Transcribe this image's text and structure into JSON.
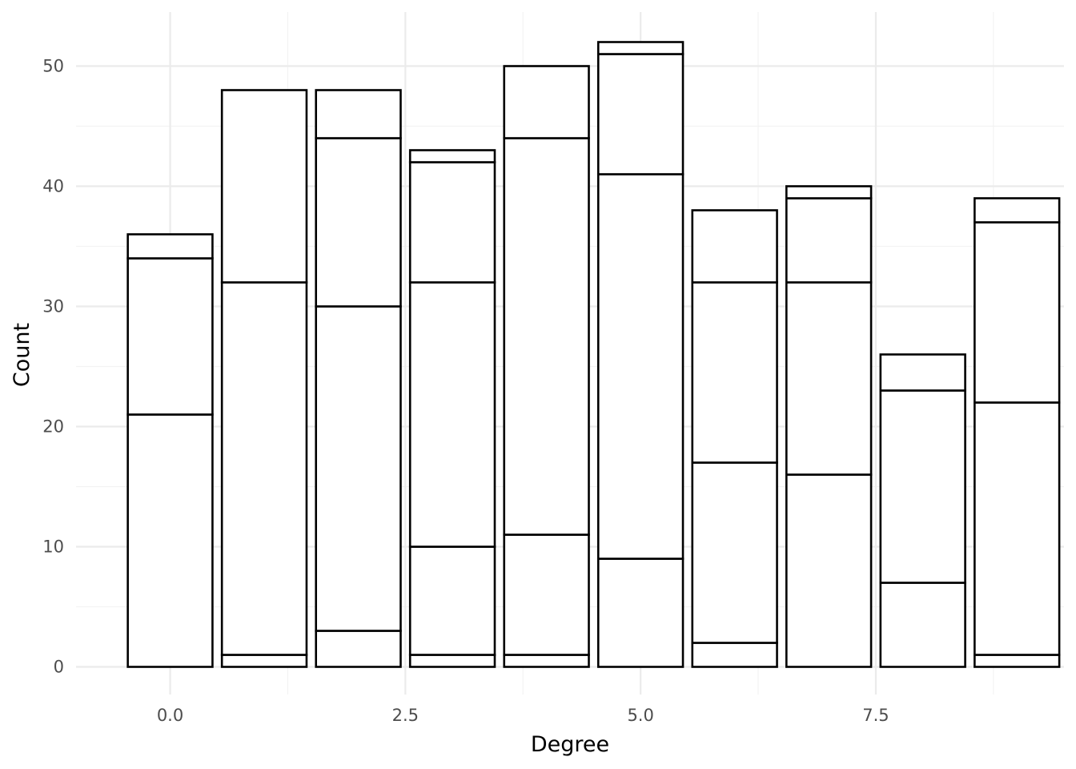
{
  "chart_data": {
    "type": "bar",
    "stacked": true,
    "xlabel": "Degree",
    "ylabel": "Count",
    "xlim": [
      -1,
      9.5
    ],
    "ylim": [
      -2.3,
      54.5
    ],
    "x_ticks": [
      0.0,
      2.5,
      5.0,
      7.5
    ],
    "x_tick_labels": [
      "0.0",
      "2.5",
      "5.0",
      "7.5"
    ],
    "y_ticks": [
      0,
      10,
      20,
      30,
      40,
      50
    ],
    "y_tick_labels": [
      "0",
      "10",
      "20",
      "30",
      "40",
      "50"
    ],
    "grid": true,
    "legend": "none",
    "bar_width": 0.9,
    "bars": [
      {
        "x": 0,
        "boundaries": [
          0,
          21,
          34,
          36
        ]
      },
      {
        "x": 1,
        "boundaries": [
          0,
          1,
          32,
          48
        ]
      },
      {
        "x": 2,
        "boundaries": [
          0,
          3,
          30,
          44,
          48
        ]
      },
      {
        "x": 3,
        "boundaries": [
          0,
          1,
          10,
          32,
          42,
          43
        ]
      },
      {
        "x": 4,
        "boundaries": [
          0,
          1,
          11,
          44,
          50
        ]
      },
      {
        "x": 5,
        "boundaries": [
          0,
          9,
          41,
          51,
          52
        ]
      },
      {
        "x": 6,
        "boundaries": [
          0,
          2,
          17,
          32,
          38
        ]
      },
      {
        "x": 7,
        "boundaries": [
          0,
          16,
          32,
          39,
          40
        ]
      },
      {
        "x": 8,
        "boundaries": [
          0,
          7,
          23,
          26
        ]
      },
      {
        "x": 9,
        "boundaries": [
          0,
          1,
          22,
          37,
          39
        ]
      }
    ]
  },
  "colors": {
    "background": "#ffffff",
    "grid_major": "#ebebeb",
    "grid_minor": "#f3f3f3",
    "bar_fill": "#ffffff",
    "bar_stroke": "#000000",
    "tick_text": "#4d4d4d",
    "title_text": "#000000"
  }
}
